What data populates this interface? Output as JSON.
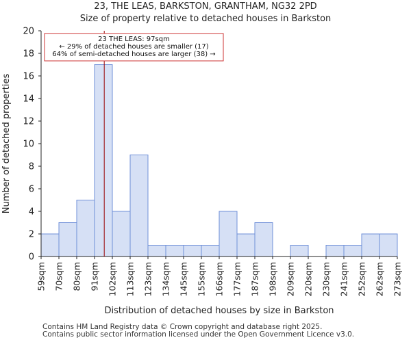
{
  "header": {
    "title": "23, THE LEAS, BARKSTON, GRANTHAM, NG32 2PD",
    "subtitle": "Size of property relative to detached houses in Barkston"
  },
  "footer": {
    "line1": "Contains HM Land Registry data © Crown copyright and database right 2025.",
    "line2": "Contains public sector information licensed under the Open Government Licence v3.0."
  },
  "colors": {
    "bar_fill": "#d6e0f5",
    "bar_stroke": "#6f8fd8",
    "marker_line": "#990000",
    "annotation_border": "#cc3333"
  },
  "chart_data": {
    "type": "bar",
    "title": "Size of property relative to detached houses in Barkston",
    "xlabel": "Distribution of detached houses by size in Barkston",
    "ylabel": "Number of detached properties",
    "ylim": [
      0,
      20
    ],
    "yticks": [
      0,
      2,
      4,
      6,
      8,
      10,
      12,
      14,
      16,
      18,
      20
    ],
    "bin_edges": [
      59,
      70,
      80,
      91,
      102,
      113,
      123,
      134,
      145,
      155,
      166,
      177,
      187,
      198,
      209,
      220,
      230,
      241,
      252,
      262,
      273
    ],
    "bin_labels": [
      "59sqm",
      "70sqm",
      "80sqm",
      "91sqm",
      "102sqm",
      "113sqm",
      "123sqm",
      "134sqm",
      "145sqm",
      "155sqm",
      "166sqm",
      "177sqm",
      "187sqm",
      "198sqm",
      "209sqm",
      "220sqm",
      "230sqm",
      "241sqm",
      "252sqm",
      "262sqm",
      "273sqm"
    ],
    "values": [
      2,
      3,
      5,
      17,
      4,
      9,
      1,
      1,
      1,
      1,
      4,
      2,
      3,
      0,
      1,
      0,
      1,
      1,
      2,
      2
    ],
    "marker_value": 97,
    "annotation": {
      "line1": "23 THE LEAS: 97sqm",
      "line2": "← 29% of detached houses are smaller (17)",
      "line3": "64% of semi-detached houses are larger (38) →"
    },
    "grid": false
  }
}
